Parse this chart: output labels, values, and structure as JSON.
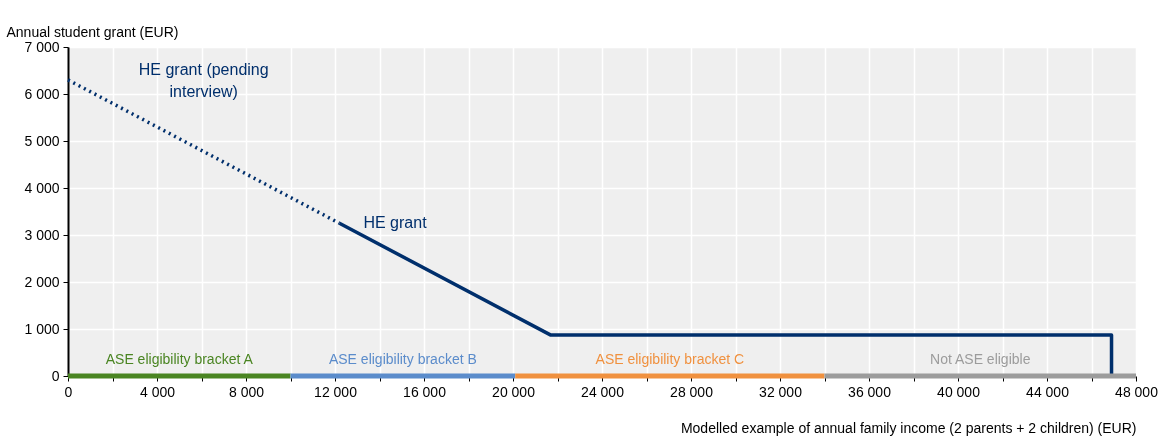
{
  "chart_data": {
    "type": "line",
    "xlabel": "Modelled example of annual family income (2 parents + 2 children) (EUR)",
    "ylabel": "Annual student grant (EUR)",
    "xlim": [
      0,
      48000
    ],
    "ylim": [
      0,
      7000
    ],
    "xticks": [
      0,
      {
        "value": 2000,
        "label": null
      },
      {
        "value": 4000,
        "label": "4 000"
      },
      {
        "value": 6000,
        "label": null
      },
      {
        "value": 8000,
        "label": "8 000"
      },
      {
        "value": 10000,
        "label": null
      },
      {
        "value": 12000,
        "label": "12 000"
      },
      {
        "value": 14000,
        "label": null
      },
      {
        "value": 16000,
        "label": "16 000"
      },
      {
        "value": 18000,
        "label": null
      },
      {
        "value": 20000,
        "label": "20 000"
      },
      {
        "value": 22000,
        "label": null
      },
      {
        "value": 24000,
        "label": "24 000"
      },
      {
        "value": 26000,
        "label": null
      },
      {
        "value": 28000,
        "label": "28 000"
      },
      {
        "value": 30000,
        "label": null
      },
      {
        "value": 32000,
        "label": "32 000"
      },
      {
        "value": 34000,
        "label": null
      },
      {
        "value": 36000,
        "label": "36 000"
      },
      {
        "value": 38000,
        "label": null
      },
      {
        "value": 40000,
        "label": "40 000"
      },
      {
        "value": 42000,
        "label": null
      },
      {
        "value": 44000,
        "label": "44 000"
      },
      {
        "value": 46000,
        "label": null
      },
      {
        "value": 48000,
        "label": "48 000"
      }
    ],
    "yticks": [
      0,
      {
        "value": 1000,
        "label": "1 000"
      },
      {
        "value": 2000,
        "label": "2 000"
      },
      {
        "value": 3000,
        "label": "3 000"
      },
      {
        "value": 4000,
        "label": "4 000"
      },
      {
        "value": 5000,
        "label": "5 000"
      },
      {
        "value": 6000,
        "label": "6 000"
      },
      {
        "value": 7000,
        "label": "7 000"
      }
    ],
    "grid": true,
    "marker": "none",
    "series": [
      {
        "name": "HE grant (pending interview)",
        "color": "#002f6c",
        "line_style": "dotted",
        "x": [
          0,
          12200
        ],
        "values": [
          6300,
          3250
        ]
      },
      {
        "name": "HE grant",
        "color": "#002f6c",
        "line_style": "solid",
        "x": [
          12200,
          21700,
          46900,
          46900
        ],
        "values": [
          3250,
          870,
          870,
          0
        ]
      },
      {
        "name": "ASE eligibility bracket A",
        "color": "#4a8522",
        "line_style": "solid",
        "x": [
          0,
          10000
        ],
        "values": [
          0,
          0
        ]
      },
      {
        "name": "ASE eligibility bracket B",
        "color": "#5b8ccb",
        "line_style": "solid",
        "x": [
          10000,
          20100
        ],
        "values": [
          0,
          0
        ]
      },
      {
        "name": "ASE eligibility bracket C",
        "color": "#f0913f",
        "line_style": "solid",
        "x": [
          20100,
          34000
        ],
        "values": [
          0,
          0
        ]
      },
      {
        "name": "Not ASE eligible",
        "color": "#9c9c9c",
        "line_style": "solid",
        "x": [
          34000,
          48000
        ],
        "values": [
          0,
          0
        ]
      }
    ]
  }
}
